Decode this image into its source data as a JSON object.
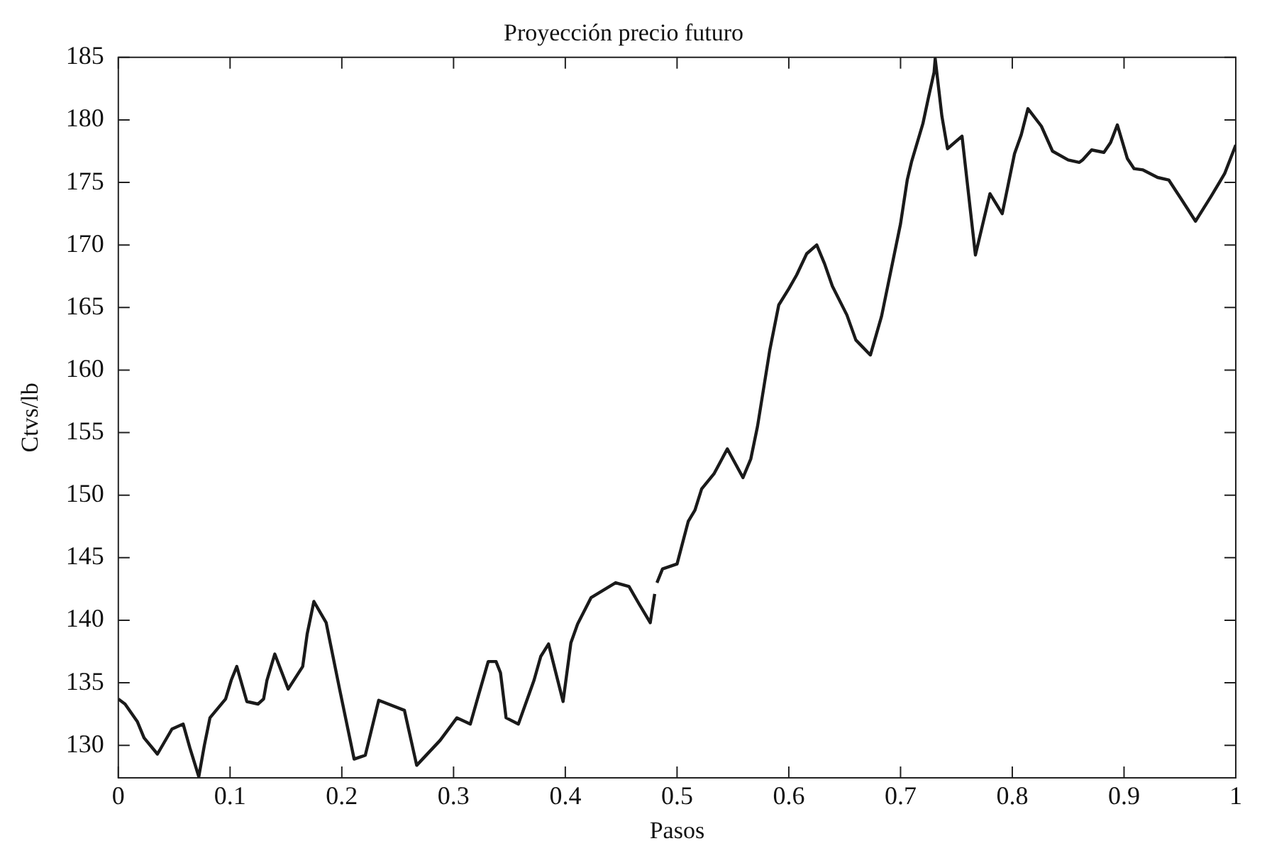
{
  "chart_data": {
    "type": "line",
    "title": "Proyección precio futuro",
    "xlabel": "Pasos",
    "ylabel": "Ctvs/lb",
    "xlim": [
      0,
      1
    ],
    "xticks": [
      0,
      0.1,
      0.2,
      0.3,
      0.4,
      0.5,
      0.6,
      0.7,
      0.8,
      0.9,
      1
    ],
    "ylim": [
      127.4,
      185
    ],
    "yticks": [
      130,
      135,
      140,
      145,
      150,
      155,
      160,
      165,
      170,
      175,
      180,
      185
    ],
    "grid": false,
    "legend": false,
    "marker": "none",
    "line_style": "solid",
    "series": [
      {
        "color": "#1a1a1a",
        "x": [
          0,
          0.006,
          0.017,
          0.023,
          0.035,
          0.048,
          0.058,
          0.064,
          0.072,
          0.077,
          0.082,
          0.096,
          0.101,
          0.106,
          0.115,
          0.125,
          0.13,
          0.133,
          0.14,
          0.152,
          0.165,
          0.169,
          0.175,
          0.186,
          0.198,
          0.211,
          0.221,
          0.233,
          0.256,
          0.267,
          0.288,
          0.303,
          0.315,
          0.322,
          0.331,
          0.338,
          0.342,
          0.347,
          0.358,
          0.372,
          0.378,
          0.385,
          0.398,
          0.405,
          0.411,
          0.423,
          0.445,
          0.457,
          0.466,
          0.476,
          0.48,
          0.481,
          0.482,
          0.487,
          0.5,
          0.51,
          0.516,
          0.522,
          0.533,
          0.545,
          0.559,
          0.566,
          0.572,
          0.583,
          0.591,
          0.6,
          0.607,
          0.616,
          0.625,
          0.632,
          0.639,
          0.652,
          0.66,
          0.673,
          0.683,
          0.7,
          0.706,
          0.71,
          0.72,
          0.725,
          0.73,
          0.731,
          0.737,
          0.742,
          0.755,
          0.767,
          0.78,
          0.791,
          0.802,
          0.808,
          0.814,
          0.826,
          0.836,
          0.85,
          0.86,
          0.863,
          0.871,
          0.882,
          0.888,
          0.894,
          0.903,
          0.909,
          0.917,
          0.93,
          0.94,
          0.951,
          0.964,
          0.978,
          0.99,
          1
        ],
        "values": [
          133.7,
          133.3,
          131.9,
          130.6,
          129.3,
          131.3,
          131.7,
          129.8,
          127.5,
          130,
          132.2,
          133.7,
          135.2,
          136.3,
          133.5,
          133.3,
          133.7,
          135.2,
          137.3,
          134.5,
          136.3,
          138.9,
          141.5,
          139.8,
          134.5,
          128.9,
          129.2,
          133.6,
          132.8,
          128.4,
          130.4,
          132.2,
          131.7,
          133.9,
          136.7,
          136.7,
          135.8,
          132.2,
          131.7,
          135.2,
          137.1,
          138.1,
          133.5,
          138.2,
          139.7,
          141.8,
          143,
          142.7,
          141.3,
          139.8,
          142.1,
          null,
          143,
          144.1,
          144.5,
          147.9,
          148.8,
          150.5,
          151.7,
          153.7,
          151.4,
          152.9,
          155.5,
          161.6,
          165.2,
          166.5,
          167.6,
          169.3,
          170,
          168.5,
          166.7,
          164.4,
          162.4,
          161.2,
          164.3,
          171.7,
          175.2,
          176.7,
          179.7,
          181.8,
          183.8,
          184.9,
          180.3,
          177.7,
          178.7,
          169.2,
          174.1,
          172.5,
          177.3,
          178.8,
          180.9,
          179.5,
          177.5,
          176.8,
          176.6,
          176.8,
          177.6,
          177.4,
          178.2,
          179.6,
          176.9,
          176.1,
          176,
          175.4,
          175.2,
          173.7,
          171.9,
          173.9,
          175.7,
          178
        ]
      }
    ]
  }
}
